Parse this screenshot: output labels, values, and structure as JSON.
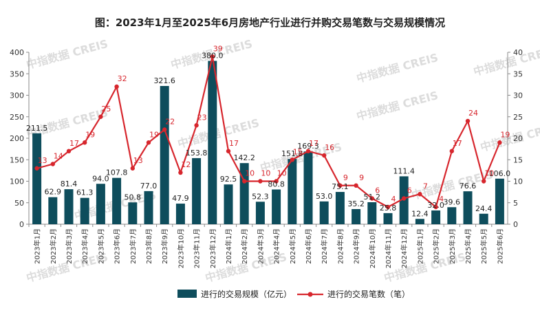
{
  "title": "图：2023年1月至2025年6月房地产行业进行并购交易笔数与交易规模情况",
  "watermark": "中指数据 CREIS",
  "colors": {
    "bar": "#0e4d5c",
    "line": "#d7262d",
    "axis": "#888888"
  },
  "chart_data": {
    "type": "bar",
    "categories": [
      "2023年1月",
      "2023年2月",
      "2023年3月",
      "2023年4月",
      "2023年5月",
      "2023年6月",
      "2023年7月",
      "2023年8月",
      "2023年9月",
      "2023年10月",
      "2023年11月",
      "2023年12月",
      "2024年1月",
      "2024年2月",
      "2024年3月",
      "2024年4月",
      "2024年5月",
      "2024年6月",
      "2024年7月",
      "2024年8月",
      "2024年9月",
      "2024年10月",
      "2024年11月",
      "2024年12月",
      "2025年1月",
      "2025年2月",
      "2025年3月",
      "2025年4月",
      "2025年5月",
      "2025年6月"
    ],
    "series": [
      {
        "name": "进行的交易规模（亿元）",
        "type": "bar",
        "axis": "left",
        "values": [
          211.5,
          62.9,
          81.4,
          61.3,
          94.0,
          107.8,
          50.8,
          77.0,
          321.6,
          47.9,
          153.8,
          380.0,
          92.5,
          142.2,
          52.3,
          80.8,
          151.8,
          169.3,
          53.0,
          75.1,
          35.2,
          51.2,
          25.8,
          111.4,
          12.4,
          32.0,
          39.6,
          76.6,
          24.4,
          106.0
        ],
        "labels": [
          "211.5",
          "62.9",
          "81.4",
          "61.3",
          "94.0",
          "107.8",
          "50.8",
          "77.0",
          "321.6",
          "47.9",
          "153.8",
          "380.0",
          "92.5",
          "142.2",
          "52.3",
          "80.8",
          "151.8",
          "169.3",
          "53.0",
          "75.1",
          "35.2",
          "51.2",
          "25.8",
          "111.4",
          "12.4",
          "32.0",
          "39.6",
          "76.6",
          "24.4",
          "106.0"
        ]
      },
      {
        "name": "进行的交易笔数（笔）",
        "type": "line",
        "axis": "right",
        "values": [
          13,
          14,
          17,
          19,
          25,
          32,
          13,
          19,
          22,
          12,
          23,
          39,
          17,
          10,
          10,
          10,
          15,
          17,
          16,
          9,
          9,
          6,
          4,
          6,
          7,
          4,
          17,
          24,
          10,
          19
        ],
        "labels": [
          "13",
          "14",
          "17",
          "19",
          "25",
          "32",
          "13",
          "19",
          "22",
          "12",
          "23",
          "39",
          "17",
          "10",
          "10",
          "10",
          "15",
          "17",
          "16",
          "9",
          "9",
          "6",
          "4",
          "6",
          "7",
          "4",
          "17",
          "24",
          "10",
          "19"
        ]
      }
    ],
    "y_left": {
      "min": 0,
      "max": 400,
      "ticks": [
        "0",
        "50",
        "100",
        "150",
        "200",
        "250",
        "300",
        "350",
        "400"
      ]
    },
    "y_right": {
      "min": 0,
      "max": 40,
      "ticks": [
        "0",
        "5",
        "10",
        "15",
        "20",
        "25",
        "30",
        "35",
        "40"
      ]
    },
    "legend_position": "bottom"
  }
}
